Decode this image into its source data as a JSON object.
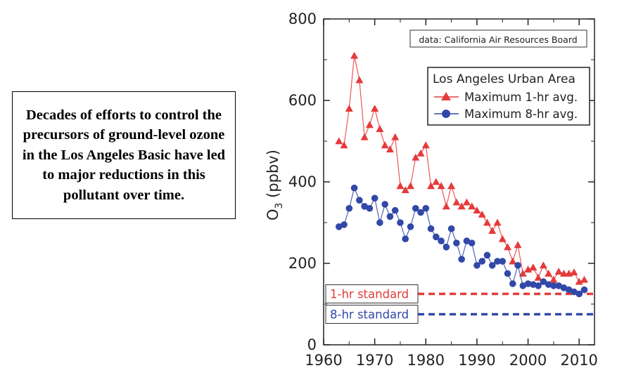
{
  "caption": "Decades of efforts to control the precursors of ground-level ozone in the Los Angeles Basic have led to major reductions in this pollutant over time.",
  "chart_data": {
    "type": "line",
    "ylabel_main": "O",
    "ylabel_sub": "3",
    "ylabel_unit": "(ppbv)",
    "xlim": [
      1960,
      2013
    ],
    "ylim": [
      0,
      800
    ],
    "x_ticks": [
      1960,
      1970,
      1980,
      1990,
      2000,
      2010
    ],
    "y_ticks": [
      0,
      200,
      400,
      600,
      800
    ],
    "source_note": "data: California Air Resources Board",
    "legend_title": "Los Angeles Urban Area",
    "legend_position": "top-right",
    "grid": false,
    "x": [
      1963,
      1964,
      1965,
      1966,
      1967,
      1968,
      1969,
      1970,
      1971,
      1972,
      1973,
      1974,
      1975,
      1976,
      1977,
      1978,
      1979,
      1980,
      1981,
      1982,
      1983,
      1984,
      1985,
      1986,
      1987,
      1988,
      1989,
      1990,
      1991,
      1992,
      1993,
      1994,
      1995,
      1996,
      1997,
      1998,
      1999,
      2000,
      2001,
      2002,
      2003,
      2004,
      2005,
      2006,
      2007,
      2008,
      2009,
      2010,
      2011
    ],
    "series": [
      {
        "name": "Maximum 1-hr avg.",
        "color": "#e53a3a",
        "marker": "triangle",
        "values": [
          500,
          490,
          580,
          710,
          650,
          510,
          540,
          580,
          530,
          490,
          480,
          510,
          390,
          380,
          390,
          460,
          470,
          490,
          390,
          400,
          390,
          340,
          390,
          350,
          340,
          350,
          340,
          330,
          320,
          300,
          280,
          300,
          260,
          240,
          205,
          245,
          175,
          185,
          190,
          165,
          195,
          175,
          160,
          180,
          175,
          175,
          178,
          155,
          160
        ]
      },
      {
        "name": "Maximum 8-hr avg.",
        "color": "#3148a8",
        "marker": "circle",
        "values": [
          290,
          295,
          335,
          385,
          355,
          340,
          335,
          360,
          300,
          345,
          315,
          330,
          300,
          260,
          290,
          335,
          325,
          335,
          285,
          265,
          255,
          240,
          285,
          250,
          210,
          255,
          250,
          195,
          205,
          220,
          195,
          205,
          205,
          175,
          150,
          195,
          145,
          150,
          148,
          145,
          155,
          148,
          145,
          145,
          140,
          135,
          130,
          125,
          135
        ]
      }
    ],
    "standards": [
      {
        "label": "1-hr standard",
        "value": 125,
        "color": "#e53a3a"
      },
      {
        "label": "8-hr standard",
        "value": 75,
        "color": "#3148a8"
      }
    ]
  }
}
